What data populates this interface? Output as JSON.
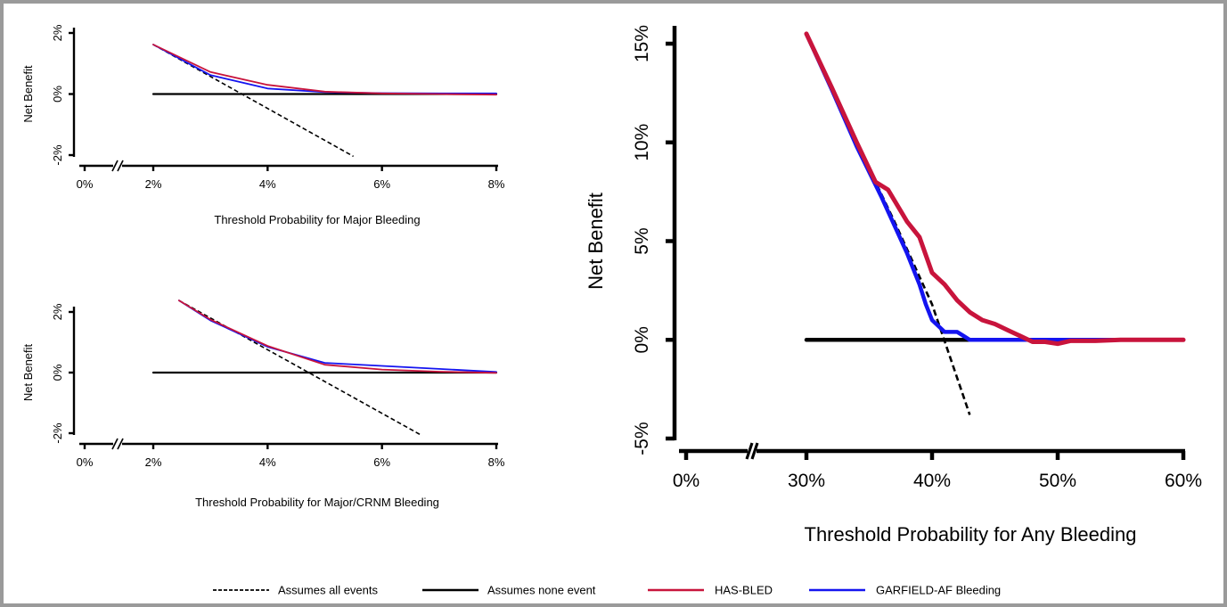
{
  "colors": {
    "all": "#000000",
    "none": "#000000",
    "hasbled": "#c8143c",
    "garfield": "#1414f0",
    "frame": "#9a9a9a"
  },
  "legend": {
    "items": [
      {
        "key": "all",
        "label": "Assumes all events",
        "style": "dashed"
      },
      {
        "key": "none",
        "label": "Assumes none event",
        "style": "solid"
      },
      {
        "key": "hasbled",
        "label": "HAS-BLED",
        "style": "solid"
      },
      {
        "key": "garfield",
        "label": "GARFIELD-AF Bleeding",
        "style": "solid"
      }
    ]
  },
  "chart_data": [
    {
      "id": "major",
      "type": "line",
      "xlabel": "Threshold Probability for Major Bleeding",
      "ylabel": "Net Benefit",
      "xlim": [
        0.02,
        0.08
      ],
      "ylim": [
        -0.02,
        0.02
      ],
      "broken_x_axis": true,
      "x_pre_break_tick": {
        "value": 0,
        "label": "0%"
      },
      "x_ticks": [
        0.02,
        0.04,
        0.06,
        0.08
      ],
      "x_tick_labels": [
        "2%",
        "4%",
        "6%",
        "8%"
      ],
      "y_ticks": [
        -0.02,
        0,
        0.02
      ],
      "y_tick_labels": [
        "-2%",
        "0%",
        "2%"
      ],
      "series": [
        {
          "key": "all",
          "points": [
            [
              0.02,
              0.0162
            ],
            [
              0.055,
              -0.0204
            ]
          ]
        },
        {
          "key": "none",
          "points": [
            [
              0.02,
              0
            ],
            [
              0.08,
              0
            ]
          ]
        },
        {
          "key": "hasbled",
          "points": [
            [
              0.02,
              0.0162
            ],
            [
              0.03,
              0.0072
            ],
            [
              0.04,
              0.003
            ],
            [
              0.05,
              0.0008
            ],
            [
              0.06,
              0.0002
            ],
            [
              0.07,
              0.0
            ],
            [
              0.08,
              -0.0002
            ]
          ]
        },
        {
          "key": "garfield",
          "points": [
            [
              0.02,
              0.0162
            ],
            [
              0.03,
              0.0062
            ],
            [
              0.04,
              0.0018
            ],
            [
              0.05,
              0.0006
            ],
            [
              0.06,
              0.0003
            ],
            [
              0.07,
              0.0002
            ],
            [
              0.08,
              0.0002
            ]
          ]
        }
      ]
    },
    {
      "id": "major-crnm",
      "type": "line",
      "xlabel": "Threshold Probability for Major/CRNM Bleeding",
      "ylabel": "Net Benefit",
      "xlim": [
        0.02,
        0.08
      ],
      "ylim": [
        -0.02,
        0.02
      ],
      "broken_x_axis": true,
      "x_pre_break_tick": {
        "value": 0,
        "label": "0%"
      },
      "x_ticks": [
        0.02,
        0.04,
        0.06,
        0.08
      ],
      "x_tick_labels": [
        "2%",
        "4%",
        "6%",
        "8%"
      ],
      "y_ticks": [
        -0.02,
        0,
        0.02
      ],
      "y_tick_labels": [
        "-2%",
        "0%",
        "2%"
      ],
      "series": [
        {
          "key": "all",
          "points": [
            [
              0.0245,
              0.0238
            ],
            [
              0.067,
              -0.0208
            ]
          ]
        },
        {
          "key": "none",
          "points": [
            [
              0.02,
              0
            ],
            [
              0.08,
              0
            ]
          ]
        },
        {
          "key": "hasbled",
          "points": [
            [
              0.0245,
              0.0238
            ],
            [
              0.03,
              0.0175
            ],
            [
              0.04,
              0.0088
            ],
            [
              0.05,
              0.0026
            ],
            [
              0.06,
              0.001
            ],
            [
              0.07,
              0.0003
            ],
            [
              0.08,
              -0.0001
            ]
          ]
        },
        {
          "key": "garfield",
          "points": [
            [
              0.0245,
              0.0238
            ],
            [
              0.03,
              0.0172
            ],
            [
              0.04,
              0.0085
            ],
            [
              0.05,
              0.0032
            ],
            [
              0.06,
              0.0022
            ],
            [
              0.07,
              0.0012
            ],
            [
              0.08,
              0.0002
            ]
          ]
        }
      ]
    },
    {
      "id": "any",
      "type": "line",
      "xlabel": "Threshold Probability for Any Bleeding",
      "ylabel": "Net Benefit",
      "xlim": [
        0.3,
        0.6
      ],
      "ylim": [
        -0.05,
        0.15
      ],
      "broken_x_axis": true,
      "x_pre_break_tick": {
        "value": 0,
        "label": "0%"
      },
      "x_ticks": [
        0.3,
        0.4,
        0.5,
        0.6
      ],
      "x_tick_labels": [
        "30%",
        "40%",
        "50%",
        "60%"
      ],
      "y_ticks": [
        -0.05,
        0,
        0.05,
        0.1,
        0.15
      ],
      "y_tick_labels": [
        "-5%",
        "0%",
        "5%",
        "10%",
        "15%"
      ],
      "series": [
        {
          "key": "all",
          "points": [
            [
              0.3,
              0.155
            ],
            [
              0.34,
              0.1
            ],
            [
              0.37,
              0.06
            ],
            [
              0.4,
              0.018
            ],
            [
              0.43,
              -0.038
            ]
          ]
        },
        {
          "key": "none",
          "points": [
            [
              0.3,
              0
            ],
            [
              0.6,
              0
            ]
          ]
        },
        {
          "key": "hasbled",
          "points": [
            [
              0.3,
              0.155
            ],
            [
              0.32,
              0.128
            ],
            [
              0.34,
              0.1
            ],
            [
              0.355,
              0.08
            ],
            [
              0.365,
              0.076
            ],
            [
              0.38,
              0.06
            ],
            [
              0.39,
              0.052
            ],
            [
              0.4,
              0.034
            ],
            [
              0.41,
              0.028
            ],
            [
              0.42,
              0.02
            ],
            [
              0.43,
              0.014
            ],
            [
              0.44,
              0.01
            ],
            [
              0.45,
              0.008
            ],
            [
              0.46,
              0.005
            ],
            [
              0.47,
              0.002
            ],
            [
              0.48,
              -0.001
            ],
            [
              0.49,
              -0.001
            ],
            [
              0.5,
              -0.002
            ],
            [
              0.51,
              -0.0005
            ],
            [
              0.53,
              -0.0005
            ],
            [
              0.55,
              0.0
            ],
            [
              0.6,
              0.0
            ]
          ]
        },
        {
          "key": "garfield",
          "points": [
            [
              0.3,
              0.155
            ],
            [
              0.32,
              0.127
            ],
            [
              0.34,
              0.098
            ],
            [
              0.36,
              0.072
            ],
            [
              0.38,
              0.044
            ],
            [
              0.39,
              0.028
            ],
            [
              0.395,
              0.018
            ],
            [
              0.4,
              0.01
            ],
            [
              0.41,
              0.004
            ],
            [
              0.415,
              0.004
            ],
            [
              0.42,
              0.004
            ],
            [
              0.425,
              0.002
            ],
            [
              0.43,
              0.0
            ],
            [
              0.5,
              0.0
            ],
            [
              0.55,
              0.0
            ]
          ]
        }
      ]
    }
  ]
}
